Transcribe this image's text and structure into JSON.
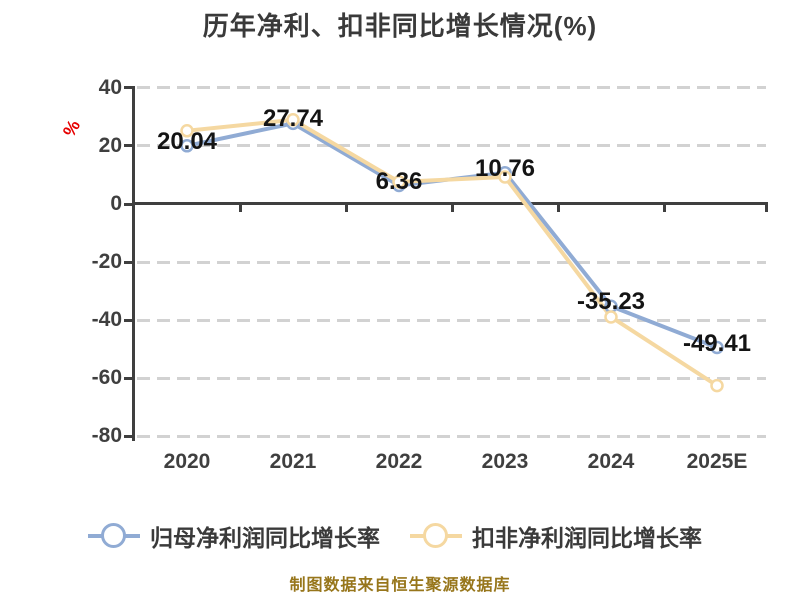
{
  "title": "历年净利、扣非同比增长情况(%)",
  "y_axis_unit": "%",
  "footer": "制图数据来自恒生聚源数据库",
  "colors": {
    "series_blue": "#90ABD4",
    "series_yellow": "#F5D8A1",
    "axis": "#3F3F3F",
    "gridline": "#D2D2D2",
    "data_label": "#141414",
    "unit_red": "#E60000",
    "footer_text": "#97761B",
    "marker_fill": "#FFFFFF"
  },
  "legend": [
    {
      "label": "归母净利润同比增长率",
      "color": "#90ABD4"
    },
    {
      "label": "扣非净利润同比增长率",
      "color": "#F5D8A1"
    }
  ],
  "chart_data": {
    "type": "line",
    "title": "历年净利、扣非同比增长情况(%)",
    "categories": [
      "2020",
      "2021",
      "2022",
      "2023",
      "2024",
      "2025E"
    ],
    "series": [
      {
        "name": "归母净利润同比增长率",
        "color": "#90ABD4",
        "values": [
          20.04,
          27.74,
          6.36,
          10.76,
          -35.23,
          -49.41
        ],
        "labeled": true
      },
      {
        "name": "扣非净利润同比增长率",
        "color": "#F5D8A1",
        "values": [
          25.2,
          29.0,
          7.6,
          9.3,
          -38.9,
          -62.5
        ],
        "labeled": false,
        "estimated": true
      }
    ],
    "data_labels": [
      "20.04",
      "27.74",
      "6.36",
      "10.76",
      "-35.23",
      "-49.41"
    ],
    "y_ticks": [
      40,
      20,
      0,
      -20,
      -40,
      -60,
      -80
    ],
    "ylim": [
      -80,
      40
    ],
    "xlabel": "",
    "ylabel": "%",
    "grid": "horizontal-dashed",
    "legend_position": "bottom",
    "marker": "circle-white-fill"
  }
}
